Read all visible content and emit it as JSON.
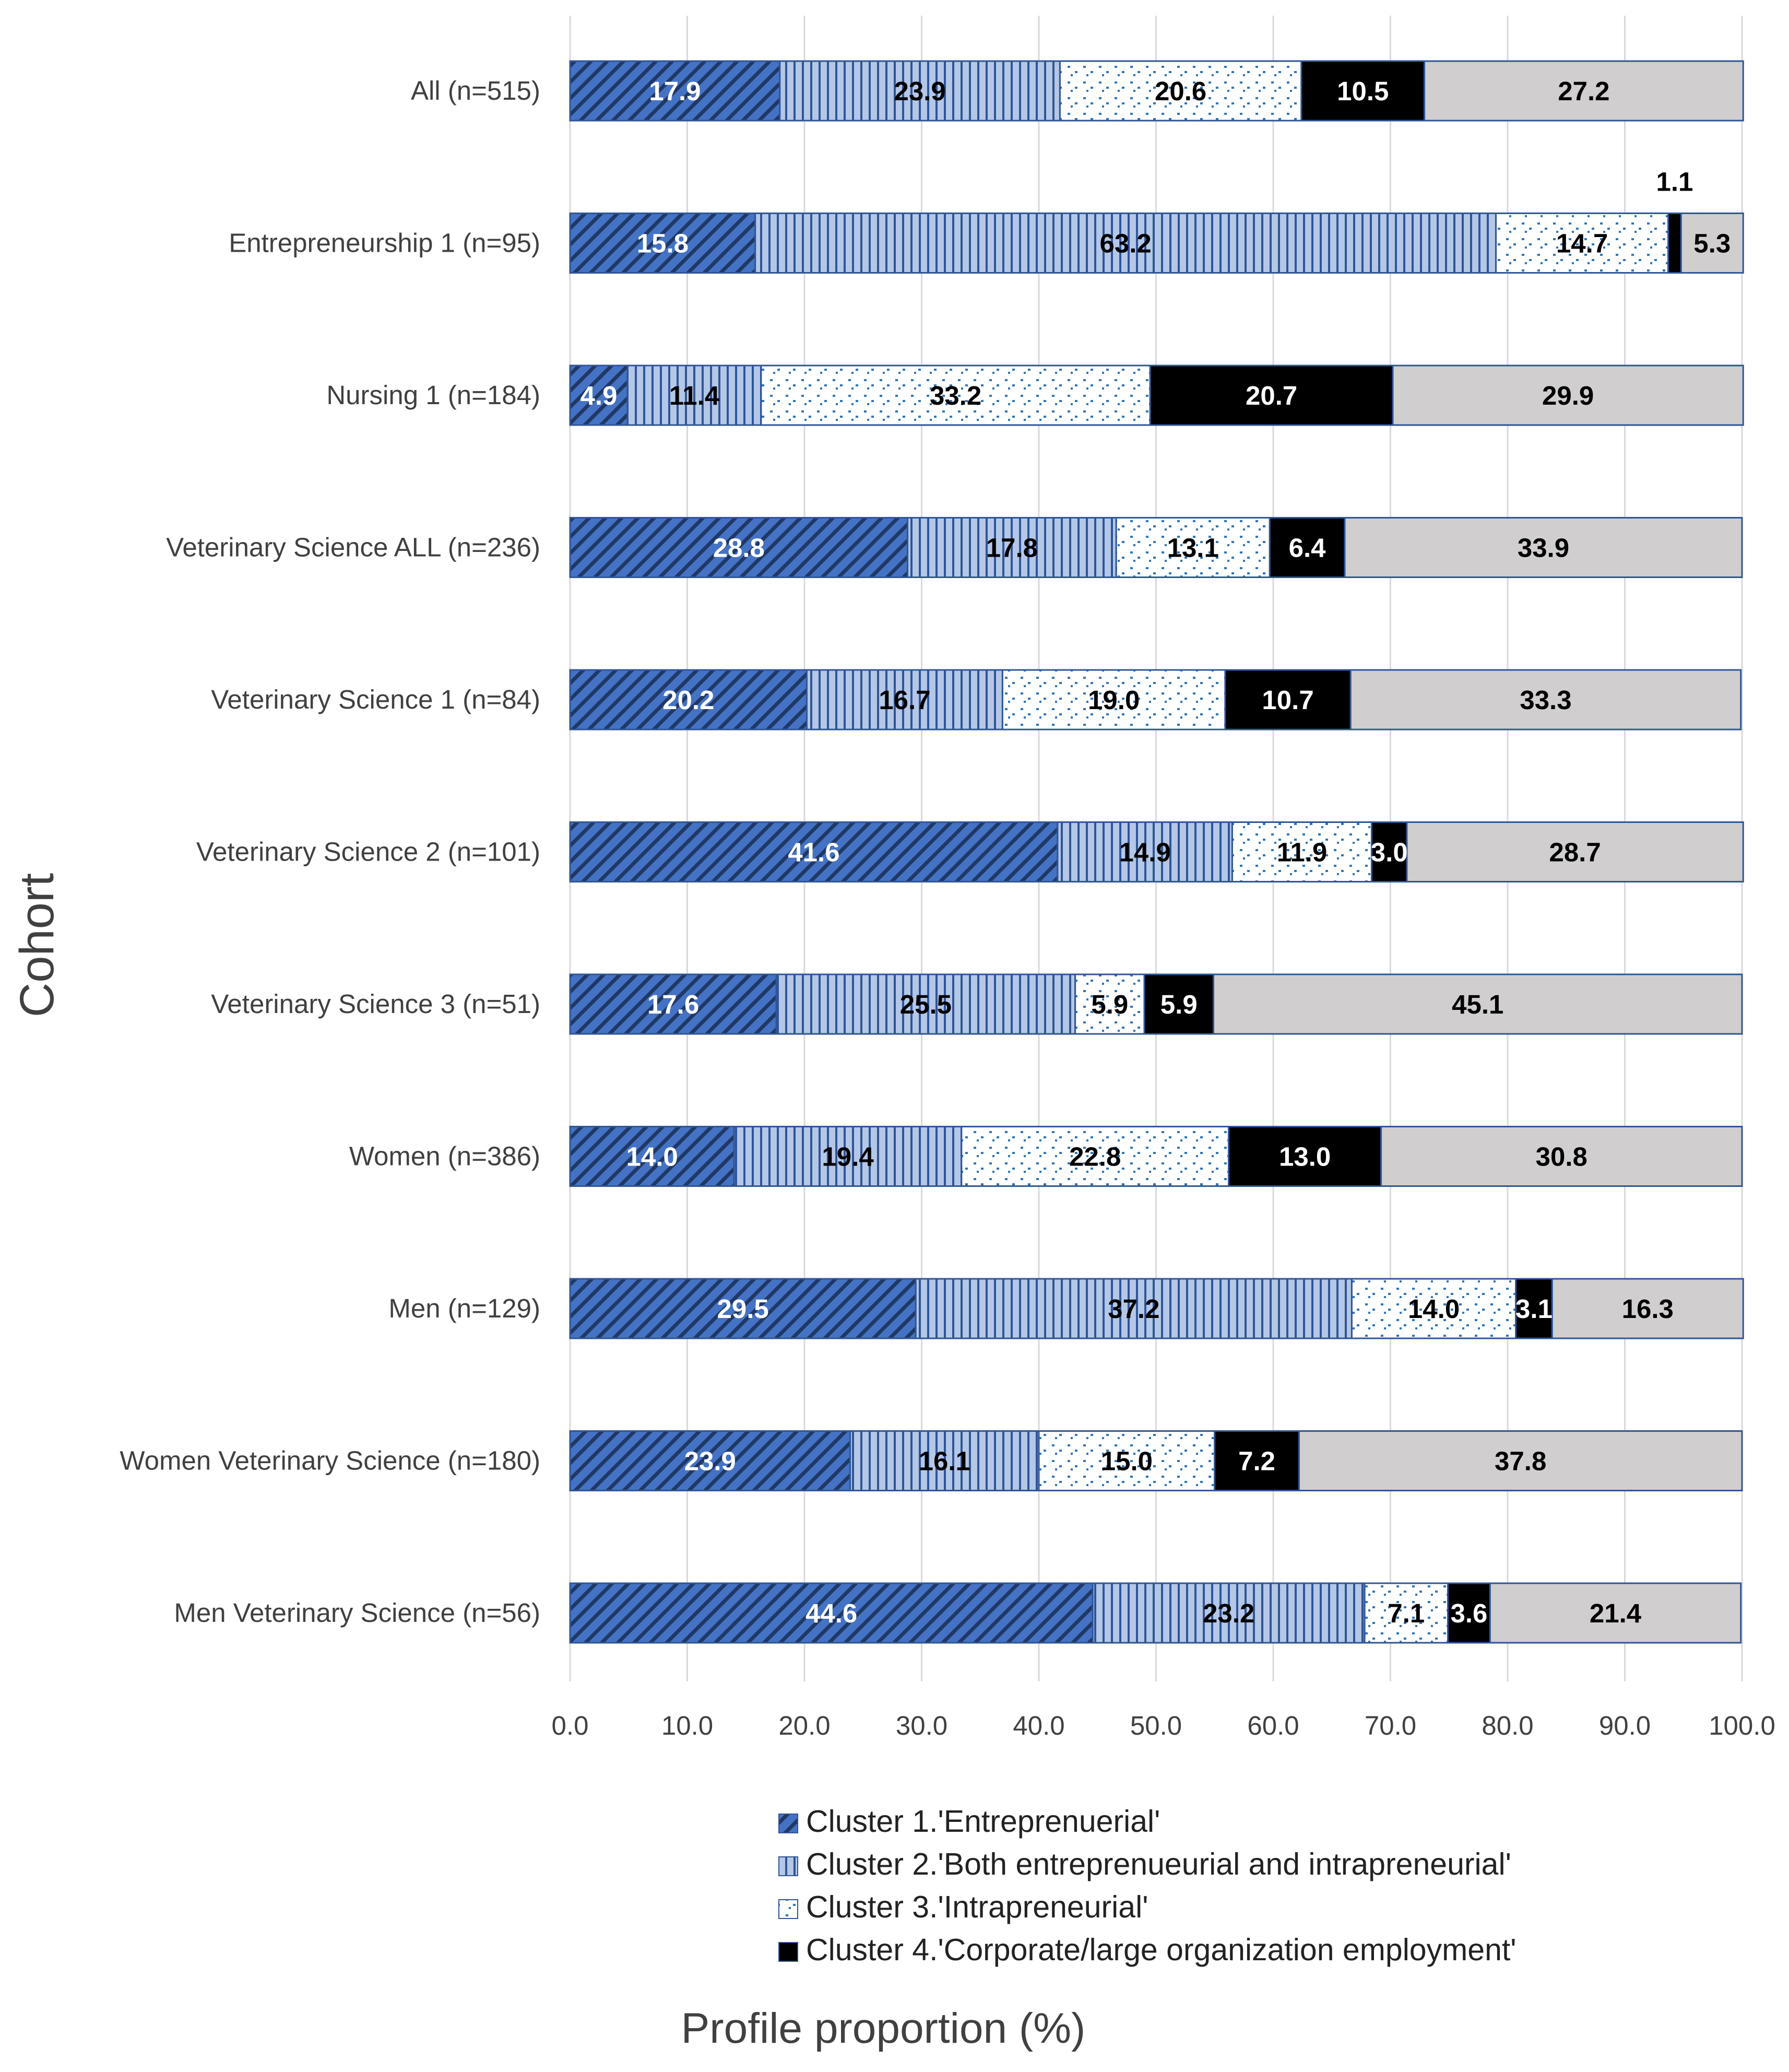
{
  "chart_data": {
    "type": "bar",
    "orientation": "horizontal",
    "stacked": true,
    "ylabel": "Cohort",
    "xlabel": "Profile proportion (%)",
    "xlim": [
      0,
      100
    ],
    "xticks": [
      "0.0",
      "10.0",
      "20.0",
      "30.0",
      "40.0",
      "50.0",
      "60.0",
      "70.0",
      "80.0",
      "90.0",
      "100.0"
    ],
    "grid": "vertical",
    "legend_position": "bottom",
    "categories": [
      "All (n=515)",
      "Entrepreneurship 1 (n=95)",
      "Nursing 1 (n=184)",
      "Veterinary Science ALL (n=236)",
      "Veterinary Science 1 (n=84)",
      "Veterinary Science 2 (n=101)",
      "Veterinary Science 3 (n=51)",
      "Women (n=386)",
      "Men (n=129)",
      "Women Veterinary Science (n=180)",
      "Men Veterinary Science (n=56)"
    ],
    "series": [
      {
        "name": "Cluster 1.'Entreprenuerial'",
        "color": "#4472C4",
        "pattern": "diagonal-hatch",
        "values": [
          17.9,
          15.8,
          4.9,
          28.8,
          20.2,
          41.6,
          17.6,
          14.0,
          29.5,
          23.9,
          44.6
        ],
        "labels": [
          "17.9",
          "15.8",
          "4.9",
          "28.8",
          "20.2",
          "41.6",
          "17.6",
          "14.0",
          "29.5",
          "23.9",
          "44.6"
        ]
      },
      {
        "name": "Cluster 2.'Both entreprenueurial and intrapreneurial'",
        "color": "#B4C7E7",
        "pattern": "vertical-lines",
        "values": [
          23.9,
          63.2,
          11.4,
          17.8,
          16.7,
          14.9,
          25.5,
          19.4,
          37.2,
          16.1,
          23.2
        ],
        "labels": [
          "23.9",
          "63.2",
          "11.4",
          "17.8",
          "16.7",
          "14.9",
          "25.5",
          "19.4",
          "37.2",
          "16.1",
          "23.2"
        ]
      },
      {
        "name": "Cluster 3.'Intrapreneurial'",
        "color": "#FFFFFF",
        "pattern": "dots",
        "values": [
          20.6,
          14.7,
          33.2,
          13.1,
          19.0,
          11.9,
          5.9,
          22.8,
          14.0,
          15.0,
          7.1
        ],
        "labels": [
          "20.6",
          "14.7",
          "33.2",
          "13.1",
          "19.0",
          "11.9",
          "5.9",
          "22.8",
          "14.0",
          "15.0",
          "7.1"
        ]
      },
      {
        "name": "Cluster 4.'Corporate/large organization employment'",
        "color": "#000000",
        "pattern": "solid",
        "values": [
          10.5,
          1.1,
          20.7,
          6.4,
          10.7,
          3.0,
          5.9,
          13.0,
          3.1,
          7.2,
          3.6
        ],
        "labels": [
          "10.5",
          "1.1",
          "20.7",
          "6.4",
          "10.7",
          "3.0",
          "5.9",
          "13.0",
          "3.1",
          "7.2",
          "3.6"
        ]
      },
      {
        "color": "#D0CECE",
        "pattern": "solid",
        "values": [
          27.2,
          5.3,
          29.9,
          33.9,
          33.3,
          28.7,
          45.1,
          30.8,
          16.3,
          37.8,
          21.4
        ],
        "labels": [
          "27.2",
          "5.3",
          "29.9",
          "33.9",
          "33.3",
          "28.7",
          "45.1",
          "30.8",
          "16.3",
          "37.8",
          "21.4"
        ]
      }
    ]
  }
}
